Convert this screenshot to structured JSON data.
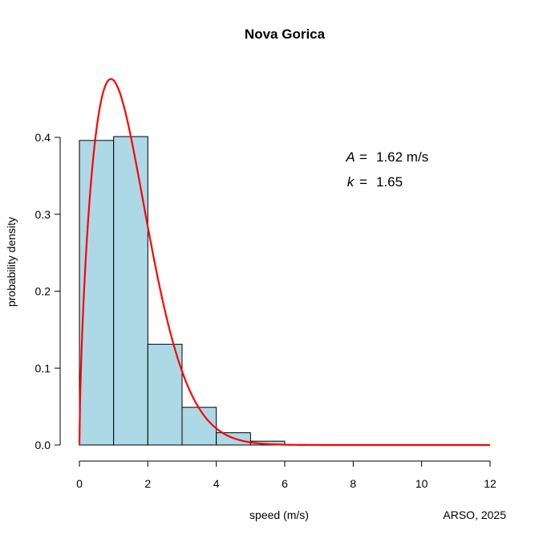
{
  "chart_data": {
    "type": "histogram",
    "title": "Nova Gorica",
    "xlabel": "speed (m/s)",
    "ylabel": "probability density",
    "credit": "ARSO, 2025",
    "xlim": [
      0,
      12
    ],
    "ylim": [
      0,
      0.4
    ],
    "xticks": [
      "0",
      "2",
      "4",
      "6",
      "8",
      "10",
      "12"
    ],
    "yticks": [
      "0.0",
      "0.1",
      "0.2",
      "0.3",
      "0.4"
    ],
    "bins": [
      {
        "x0": 0,
        "x1": 1,
        "density": 0.396
      },
      {
        "x0": 1,
        "x1": 2,
        "density": 0.401
      },
      {
        "x0": 2,
        "x1": 3,
        "density": 0.131
      },
      {
        "x0": 3,
        "x1": 4,
        "density": 0.049
      },
      {
        "x0": 4,
        "x1": 5,
        "density": 0.016
      },
      {
        "x0": 5,
        "x1": 6,
        "density": 0.005
      }
    ],
    "bar_color": "#add8e6",
    "curve": {
      "type": "weibull",
      "A": 1.62,
      "k": 1.65,
      "color": "#ff0000"
    },
    "annotations": {
      "A_symbol": "A",
      "A_eq": "=",
      "A_value": "1.62 m/s",
      "k_symbol": "k",
      "k_eq": "=",
      "k_value": "1.65"
    }
  }
}
